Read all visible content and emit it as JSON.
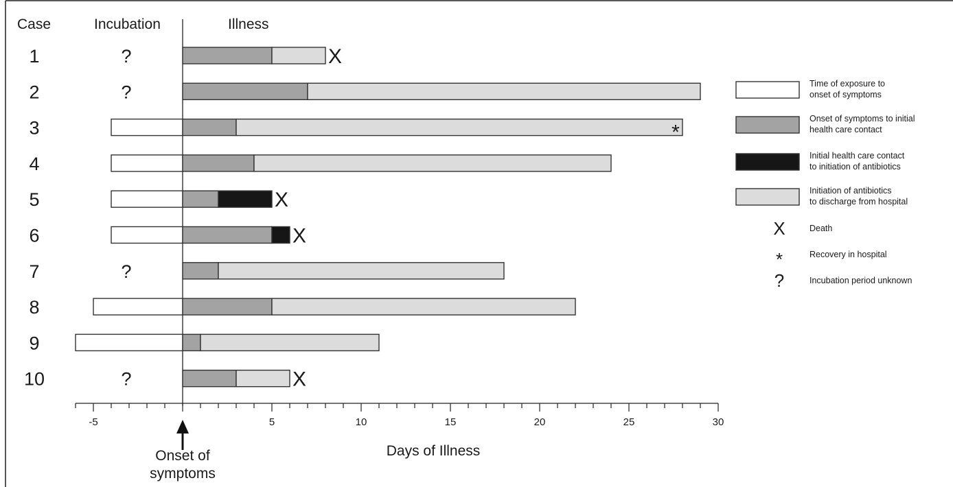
{
  "headers": {
    "case": "Case",
    "incubation": "Incubation",
    "illness": "Illness"
  },
  "chart_data": {
    "type": "bar",
    "subtype": "stacked-horizontal-timeline",
    "xlabel": "Days of Illness",
    "zero_label": "Onset of symptoms",
    "xlim": [
      -6,
      30
    ],
    "xticks": [
      -5,
      5,
      10,
      15,
      20,
      25,
      30
    ],
    "minor_tick_step": 1,
    "colors": {
      "exposure": "#ffffff",
      "care": "#a3a3a3",
      "antibiotics": "#161616",
      "discharge": "#dcdcdc",
      "outline": "#333333"
    },
    "legend_position": "right",
    "legend": [
      {
        "key": "exposure",
        "text": [
          "Time of exposure to",
          "onset of symptoms"
        ]
      },
      {
        "key": "care",
        "text": [
          "Onset of symptoms to initial",
          "health care contact"
        ]
      },
      {
        "key": "antibiotics",
        "text": [
          "Initial health care contact",
          "to initiation of antibiotics"
        ]
      },
      {
        "key": "discharge",
        "text": [
          "Initiation of antibiotics",
          "to discharge from hospital"
        ]
      },
      {
        "key": "death",
        "symbol": "X",
        "text": [
          "Death"
        ]
      },
      {
        "key": "recovery",
        "symbol": "*",
        "text": [
          "Recovery in hospital"
        ]
      },
      {
        "key": "unknown",
        "symbol": "?",
        "text": [
          "Incubation period unknown"
        ]
      }
    ],
    "cases": [
      {
        "case": "1",
        "incubation": null,
        "care": [
          0,
          5
        ],
        "antibiotics": null,
        "discharge": [
          5,
          8
        ],
        "outcome": "death"
      },
      {
        "case": "2",
        "incubation": null,
        "care": [
          0,
          7
        ],
        "antibiotics": null,
        "discharge": [
          7,
          29
        ],
        "outcome": null
      },
      {
        "case": "3",
        "incubation": [
          -4,
          0
        ],
        "care": [
          0,
          3
        ],
        "antibiotics": null,
        "discharge": [
          3,
          28
        ],
        "outcome": "recovery"
      },
      {
        "case": "4",
        "incubation": [
          -4,
          0
        ],
        "care": [
          0,
          4
        ],
        "antibiotics": null,
        "discharge": [
          4,
          24
        ],
        "outcome": null
      },
      {
        "case": "5",
        "incubation": [
          -4,
          0
        ],
        "care": [
          0,
          2
        ],
        "antibiotics": [
          2,
          5
        ],
        "discharge": null,
        "outcome": "death"
      },
      {
        "case": "6",
        "incubation": [
          -4,
          0
        ],
        "care": [
          0,
          5
        ],
        "antibiotics": [
          5,
          6
        ],
        "discharge": null,
        "outcome": "death"
      },
      {
        "case": "7",
        "incubation": null,
        "care": [
          0,
          2
        ],
        "antibiotics": null,
        "discharge": [
          2,
          18
        ],
        "outcome": null
      },
      {
        "case": "8",
        "incubation": [
          -5,
          0
        ],
        "care": [
          0,
          5
        ],
        "antibiotics": null,
        "discharge": [
          5,
          22
        ],
        "outcome": null
      },
      {
        "case": "9",
        "incubation": [
          -6,
          0
        ],
        "care": [
          0,
          1
        ],
        "antibiotics": null,
        "discharge": [
          1,
          11
        ],
        "outcome": null
      },
      {
        "case": "10",
        "incubation": null,
        "care": [
          0,
          3
        ],
        "antibiotics": null,
        "discharge": [
          3,
          6
        ],
        "outcome": "death"
      }
    ]
  }
}
